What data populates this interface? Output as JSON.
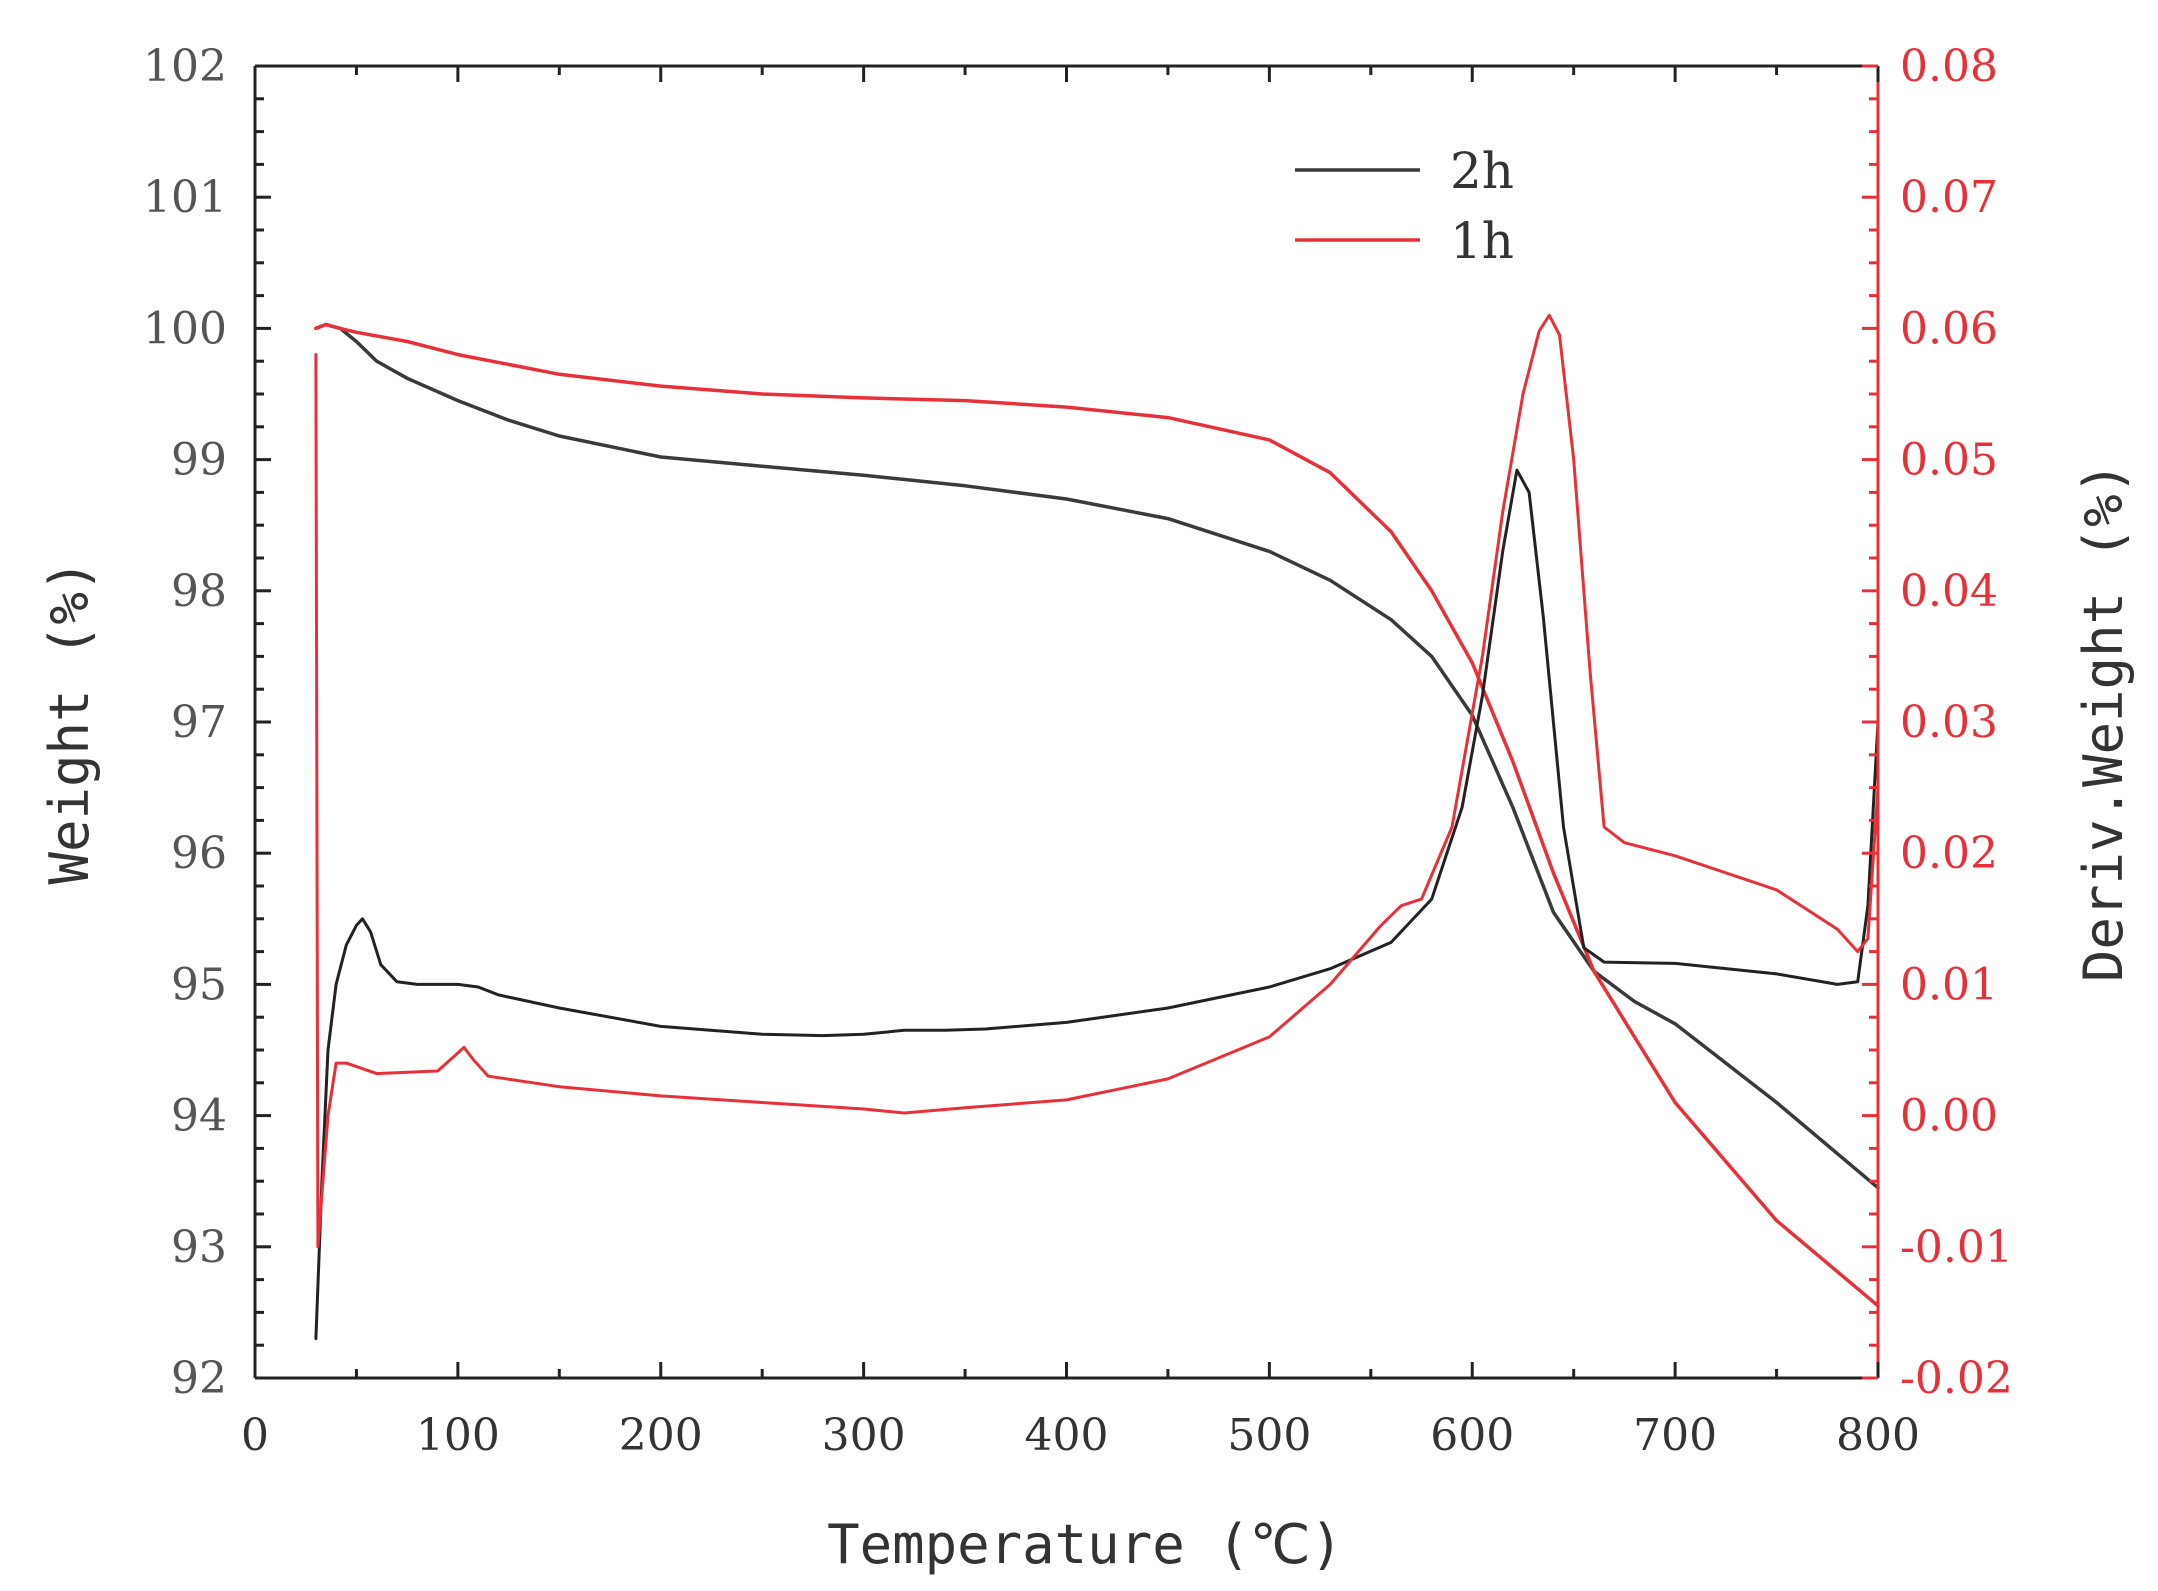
{
  "chart_data": {
    "type": "line",
    "title": "",
    "xlabel": "Temperature (℃)",
    "ylabel": "Weight (%)",
    "y2label": "Deriv.Weight (%)",
    "xlim": [
      0,
      800
    ],
    "ylim": [
      92,
      102
    ],
    "y2lim": [
      -0.02,
      0.08
    ],
    "xticks": [
      "0",
      "100",
      "200",
      "300",
      "400",
      "500",
      "600",
      "700",
      "800"
    ],
    "yticks": [
      "92",
      "93",
      "94",
      "95",
      "96",
      "97",
      "98",
      "99",
      "100",
      "101",
      "102"
    ],
    "y2ticks": [
      "-0.02",
      "-0.01",
      "0.00",
      "0.01",
      "0.02",
      "0.03",
      "0.04",
      "0.05",
      "0.06",
      "0.07",
      "0.08"
    ],
    "grid": false,
    "legend_position": "top-right",
    "colors": {
      "2h": "#3a3a3a",
      "1h": "#e8303a",
      "right_axis": "#e8303a"
    },
    "legend": [
      {
        "label": "2h",
        "color": "#3a3a3a"
      },
      {
        "label": "1h",
        "color": "#e8303a"
      }
    ],
    "series": [
      {
        "name": "2h",
        "kind": "weight",
        "axis": "left",
        "color": "#3a3a3a",
        "x": [
          30,
          35,
          42,
          50,
          60,
          75,
          100,
          125,
          150,
          200,
          250,
          300,
          350,
          400,
          450,
          500,
          530,
          560,
          580,
          600,
          620,
          640,
          660,
          680,
          700,
          750,
          800
        ],
        "y": [
          100.0,
          100.03,
          100.0,
          99.9,
          99.75,
          99.62,
          99.45,
          99.3,
          99.18,
          99.02,
          98.95,
          98.88,
          98.8,
          98.7,
          98.55,
          98.3,
          98.08,
          97.78,
          97.5,
          97.05,
          96.35,
          95.55,
          95.1,
          94.87,
          94.7,
          94.1,
          93.45
        ]
      },
      {
        "name": "1h",
        "kind": "weight",
        "axis": "left",
        "color": "#e8303a",
        "x": [
          30,
          35,
          42,
          50,
          75,
          100,
          150,
          200,
          250,
          300,
          350,
          400,
          450,
          500,
          530,
          560,
          580,
          600,
          620,
          640,
          660,
          680,
          700,
          750,
          800
        ],
        "y": [
          100.0,
          100.03,
          100.0,
          99.97,
          99.9,
          99.8,
          99.65,
          99.56,
          99.5,
          99.47,
          99.45,
          99.4,
          99.32,
          99.15,
          98.9,
          98.45,
          98.0,
          97.45,
          96.7,
          95.85,
          95.1,
          94.6,
          94.1,
          93.2,
          92.55
        ]
      },
      {
        "name": "2h",
        "kind": "derivative",
        "axis": "right",
        "color": "#222222",
        "x": [
          30,
          33,
          36,
          40,
          45,
          50,
          53,
          57,
          62,
          70,
          80,
          90,
          100,
          110,
          120,
          150,
          200,
          250,
          280,
          300,
          320,
          340,
          360,
          400,
          450,
          500,
          530,
          560,
          580,
          595,
          605,
          615,
          622,
          628,
          635,
          645,
          655,
          665,
          700,
          750,
          780,
          790,
          795,
          800
        ],
        "y": [
          -0.017,
          -0.005,
          0.005,
          0.01,
          0.013,
          0.0145,
          0.015,
          0.014,
          0.0115,
          0.0102,
          0.01,
          0.01,
          0.01,
          0.0098,
          0.0092,
          0.0082,
          0.0068,
          0.0062,
          0.0061,
          0.0062,
          0.0065,
          0.0065,
          0.0066,
          0.0071,
          0.0082,
          0.0098,
          0.0112,
          0.0132,
          0.0165,
          0.0235,
          0.032,
          0.043,
          0.0492,
          0.0475,
          0.038,
          0.022,
          0.0128,
          0.0117,
          0.0116,
          0.0108,
          0.01,
          0.0102,
          0.016,
          0.03
        ]
      },
      {
        "name": "1h",
        "kind": "derivative",
        "axis": "right",
        "color": "#e8303a",
        "x": [
          30,
          31,
          33,
          36,
          40,
          45,
          60,
          90,
          98,
          103,
          108,
          115,
          150,
          200,
          250,
          300,
          320,
          350,
          400,
          450,
          500,
          530,
          555,
          565,
          575,
          590,
          605,
          615,
          625,
          633,
          638,
          643,
          650,
          658,
          665,
          675,
          700,
          750,
          780,
          790,
          795,
          800
        ],
        "y": [
          0.058,
          -0.01,
          -0.006,
          0.0,
          0.004,
          0.004,
          0.0032,
          0.0034,
          0.0045,
          0.0052,
          0.0042,
          0.003,
          0.0022,
          0.0015,
          0.001,
          0.0005,
          0.0002,
          0.0006,
          0.0012,
          0.0028,
          0.006,
          0.01,
          0.0145,
          0.016,
          0.0165,
          0.022,
          0.035,
          0.046,
          0.055,
          0.0598,
          0.061,
          0.0595,
          0.05,
          0.034,
          0.022,
          0.0208,
          0.0198,
          0.0172,
          0.0142,
          0.0125,
          0.0135,
          0.025
        ]
      }
    ]
  }
}
